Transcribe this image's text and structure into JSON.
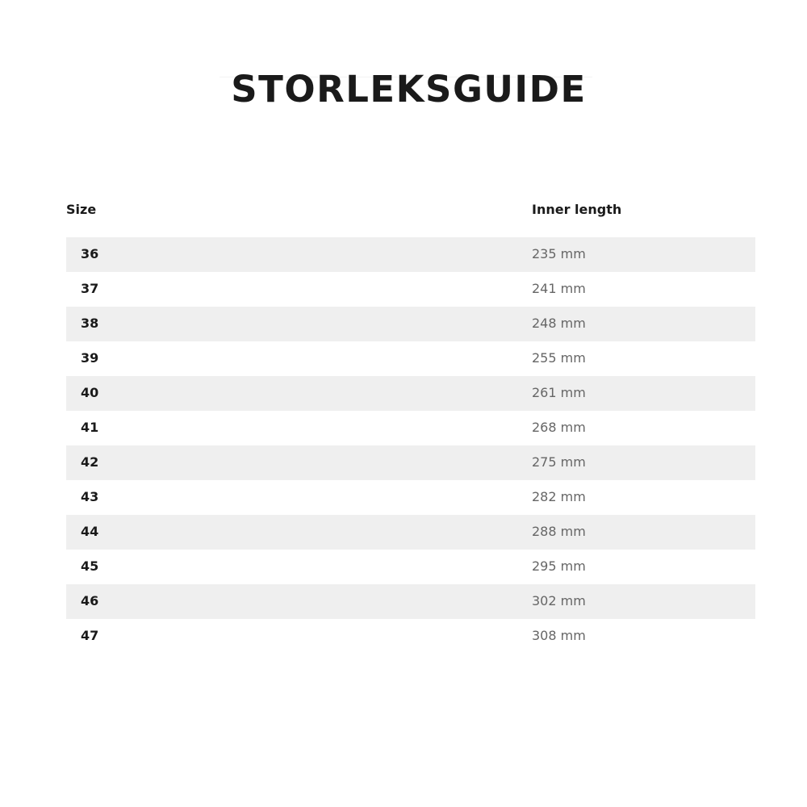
{
  "title": "STORLEKSGUIDE",
  "table": {
    "headers": [
      "Size",
      "Inner length"
    ],
    "rows": [
      {
        "size": "36",
        "length": "235 mm"
      },
      {
        "size": "37",
        "length": "241 mm"
      },
      {
        "size": "38",
        "length": "248 mm"
      },
      {
        "size": "39",
        "length": "255 mm"
      },
      {
        "size": "40",
        "length": "261 mm"
      },
      {
        "size": "41",
        "length": "268 mm"
      },
      {
        "size": "42",
        "length": "275 mm"
      },
      {
        "size": "43",
        "length": "282 mm"
      },
      {
        "size": "44",
        "length": "288 mm"
      },
      {
        "size": "45",
        "length": "295 mm"
      },
      {
        "size": "46",
        "length": "302 mm"
      },
      {
        "size": "47",
        "length": "308 mm"
      }
    ]
  },
  "colors": {
    "stripe": "#efefef",
    "text": "#1a1a1a",
    "muted": "#666666"
  }
}
